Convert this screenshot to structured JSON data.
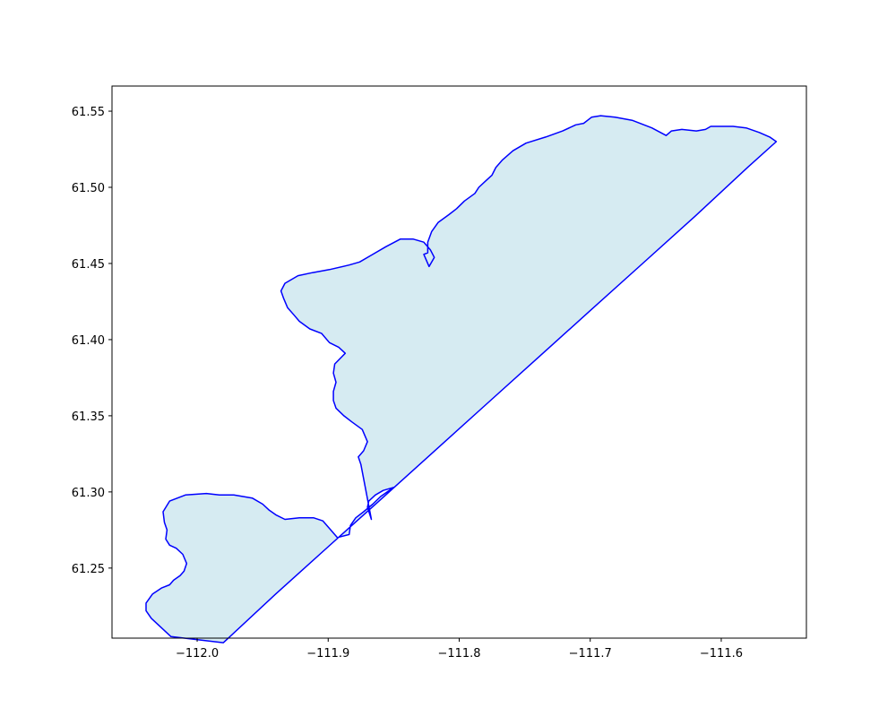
{
  "chart_data": {
    "type": "area",
    "title": "",
    "xlabel": "",
    "ylabel": "",
    "xlim": [
      -112.065,
      -111.535
    ],
    "ylim": [
      61.204,
      61.5665
    ],
    "x_ticks": [
      -112.0,
      -111.9,
      -111.8,
      -111.7,
      -111.6
    ],
    "x_tick_labels": [
      "−112.0",
      "−111.9",
      "−111.8",
      "−111.7",
      "−111.6"
    ],
    "y_ticks": [
      61.25,
      61.3,
      61.35,
      61.4,
      61.45,
      61.5,
      61.55
    ],
    "y_tick_labels": [
      "61.25",
      "61.30",
      "61.35",
      "61.40",
      "61.45",
      "61.50",
      "61.55"
    ],
    "grid": false,
    "legend": null,
    "series": [
      {
        "edge_color": "#0000ff",
        "fill_color": "#add8e6",
        "fill_alpha": 0.5,
        "x": [
          -112.035,
          -112.039,
          -112.039,
          -112.034,
          -112.027,
          -112.021,
          -112.018,
          -112.013,
          -112.01,
          -112.008,
          -112.011,
          -112.016,
          -112.021,
          -112.024,
          -112.023,
          -112.025,
          -112.026,
          -112.021,
          -112.009,
          -111.993,
          -111.983,
          -111.972,
          -111.958,
          -111.95,
          -111.945,
          -111.94,
          -111.933,
          -111.922,
          -111.911,
          -111.904,
          -111.899,
          -111.893,
          -111.884,
          -111.883,
          -111.879,
          -111.873,
          -111.866,
          -111.86,
          -111.85,
          -111.858,
          -111.864,
          -111.869,
          -111.87,
          -111.867,
          -111.875,
          -111.877,
          -111.873,
          -111.87,
          -111.874,
          -111.882,
          -111.888,
          -111.894,
          -111.896,
          -111.896,
          -111.894,
          -111.896,
          -111.895,
          -111.887,
          -111.892,
          -111.899,
          -111.905,
          -111.914,
          -111.922,
          -111.926,
          -111.931,
          -111.934,
          -111.936,
          -111.933,
          -111.927,
          -111.923,
          -111.912,
          -111.899,
          -111.884,
          -111.876,
          -111.868,
          -111.856,
          -111.845,
          -111.835,
          -111.827,
          -111.822,
          -111.819,
          -111.823,
          -111.827,
          -111.824,
          -111.824,
          -111.824,
          -111.821,
          -111.816,
          -111.808,
          -111.802,
          -111.796,
          -111.788,
          -111.785,
          -111.78,
          -111.775,
          -111.772,
          -111.767,
          -111.759,
          -111.749,
          -111.734,
          -111.721,
          -111.711,
          -111.705,
          -111.699,
          -111.692,
          -111.681,
          -111.668,
          -111.653,
          -111.642,
          -111.638,
          -111.63,
          -111.619,
          -111.612,
          -111.608,
          -111.6,
          -111.591,
          -111.581,
          -111.571,
          -111.563,
          -111.558,
          -111.58,
          -111.62,
          -111.66,
          -111.7,
          -111.74,
          -111.78,
          -111.82,
          -111.86,
          -111.9,
          -111.94,
          -111.98,
          -112.02,
          -112.035
        ],
        "y": [
          61.217,
          61.222,
          61.227,
          61.233,
          61.237,
          61.239,
          61.242,
          61.245,
          61.248,
          61.253,
          61.259,
          61.263,
          61.265,
          61.269,
          61.275,
          61.28,
          61.287,
          61.294,
          61.298,
          61.299,
          61.298,
          61.298,
          61.296,
          61.292,
          61.288,
          61.285,
          61.282,
          61.283,
          61.283,
          61.281,
          61.276,
          61.27,
          61.272,
          61.278,
          61.283,
          61.287,
          61.292,
          61.297,
          61.303,
          61.301,
          61.298,
          61.294,
          61.29,
          61.282,
          61.318,
          61.323,
          61.327,
          61.333,
          61.341,
          61.346,
          61.35,
          61.355,
          61.36,
          61.366,
          61.372,
          61.378,
          61.384,
          61.391,
          61.395,
          61.398,
          61.404,
          61.407,
          61.412,
          61.416,
          61.421,
          61.427,
          61.432,
          61.437,
          61.44,
          61.442,
          61.444,
          61.446,
          61.449,
          61.451,
          61.455,
          61.461,
          61.466,
          61.466,
          61.464,
          61.459,
          61.454,
          61.448,
          61.456,
          61.457,
          61.461,
          61.464,
          61.471,
          61.477,
          61.482,
          61.486,
          61.491,
          61.496,
          61.5,
          61.504,
          61.508,
          61.513,
          61.518,
          61.524,
          61.529,
          61.533,
          61.537,
          61.541,
          61.542,
          61.546,
          61.547,
          61.546,
          61.544,
          61.539,
          61.534,
          61.537,
          61.538,
          61.537,
          61.538,
          61.54,
          61.54,
          61.54,
          61.539,
          61.536,
          61.533,
          61.53,
          61.513,
          61.481,
          61.45,
          61.419,
          61.388,
          61.357,
          61.326,
          61.295,
          61.264,
          61.233,
          61.201,
          61.205,
          61.217
        ]
      }
    ]
  }
}
